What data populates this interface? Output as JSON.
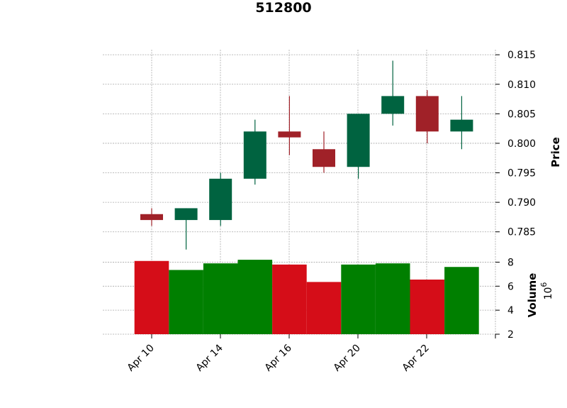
{
  "chart_data": {
    "type": "candlestick",
    "title": "512800",
    "x_tick_labels": [
      "Apr 10",
      "Apr 14",
      "Apr 16",
      "Apr 20",
      "Apr 22",
      ""
    ],
    "price_panel": {
      "ylabel": "Price",
      "ylim": [
        0.781,
        0.8155
      ],
      "yticks": [
        "0.785",
        "0.790",
        "0.795",
        "0.800",
        "0.805",
        "0.810",
        "0.815"
      ],
      "candles": [
        {
          "open": 0.788,
          "high": 0.789,
          "low": 0.786,
          "close": 0.787
        },
        {
          "open": 0.787,
          "high": 0.789,
          "low": 0.782,
          "close": 0.789
        },
        {
          "open": 0.787,
          "high": 0.795,
          "low": 0.786,
          "close": 0.794
        },
        {
          "open": 0.794,
          "high": 0.804,
          "low": 0.793,
          "close": 0.802
        },
        {
          "open": 0.802,
          "high": 0.808,
          "low": 0.798,
          "close": 0.801
        },
        {
          "open": 0.799,
          "high": 0.802,
          "low": 0.795,
          "close": 0.796
        },
        {
          "open": 0.796,
          "high": 0.805,
          "low": 0.794,
          "close": 0.805
        },
        {
          "open": 0.805,
          "high": 0.814,
          "low": 0.803,
          "close": 0.808
        },
        {
          "open": 0.808,
          "high": 0.809,
          "low": 0.8,
          "close": 0.802
        },
        {
          "open": 0.802,
          "high": 0.808,
          "low": 0.799,
          "close": 0.804
        }
      ]
    },
    "volume_panel": {
      "ylabel": "Volume",
      "exponent_base": "10",
      "exponent_power": "6",
      "ylim": [
        2,
        8.5
      ],
      "yticks": [
        "2",
        "4",
        "6",
        "8"
      ],
      "values": [
        8.1,
        7.35,
        7.9,
        8.2,
        7.8,
        6.35,
        7.8,
        7.9,
        6.55,
        7.6
      ]
    },
    "colors": {
      "up_candle": "#006340",
      "down_candle": "#a02128",
      "up_volume": "#007f00",
      "down_volume": "#d50d18",
      "grid": "#a8a8a8"
    }
  }
}
